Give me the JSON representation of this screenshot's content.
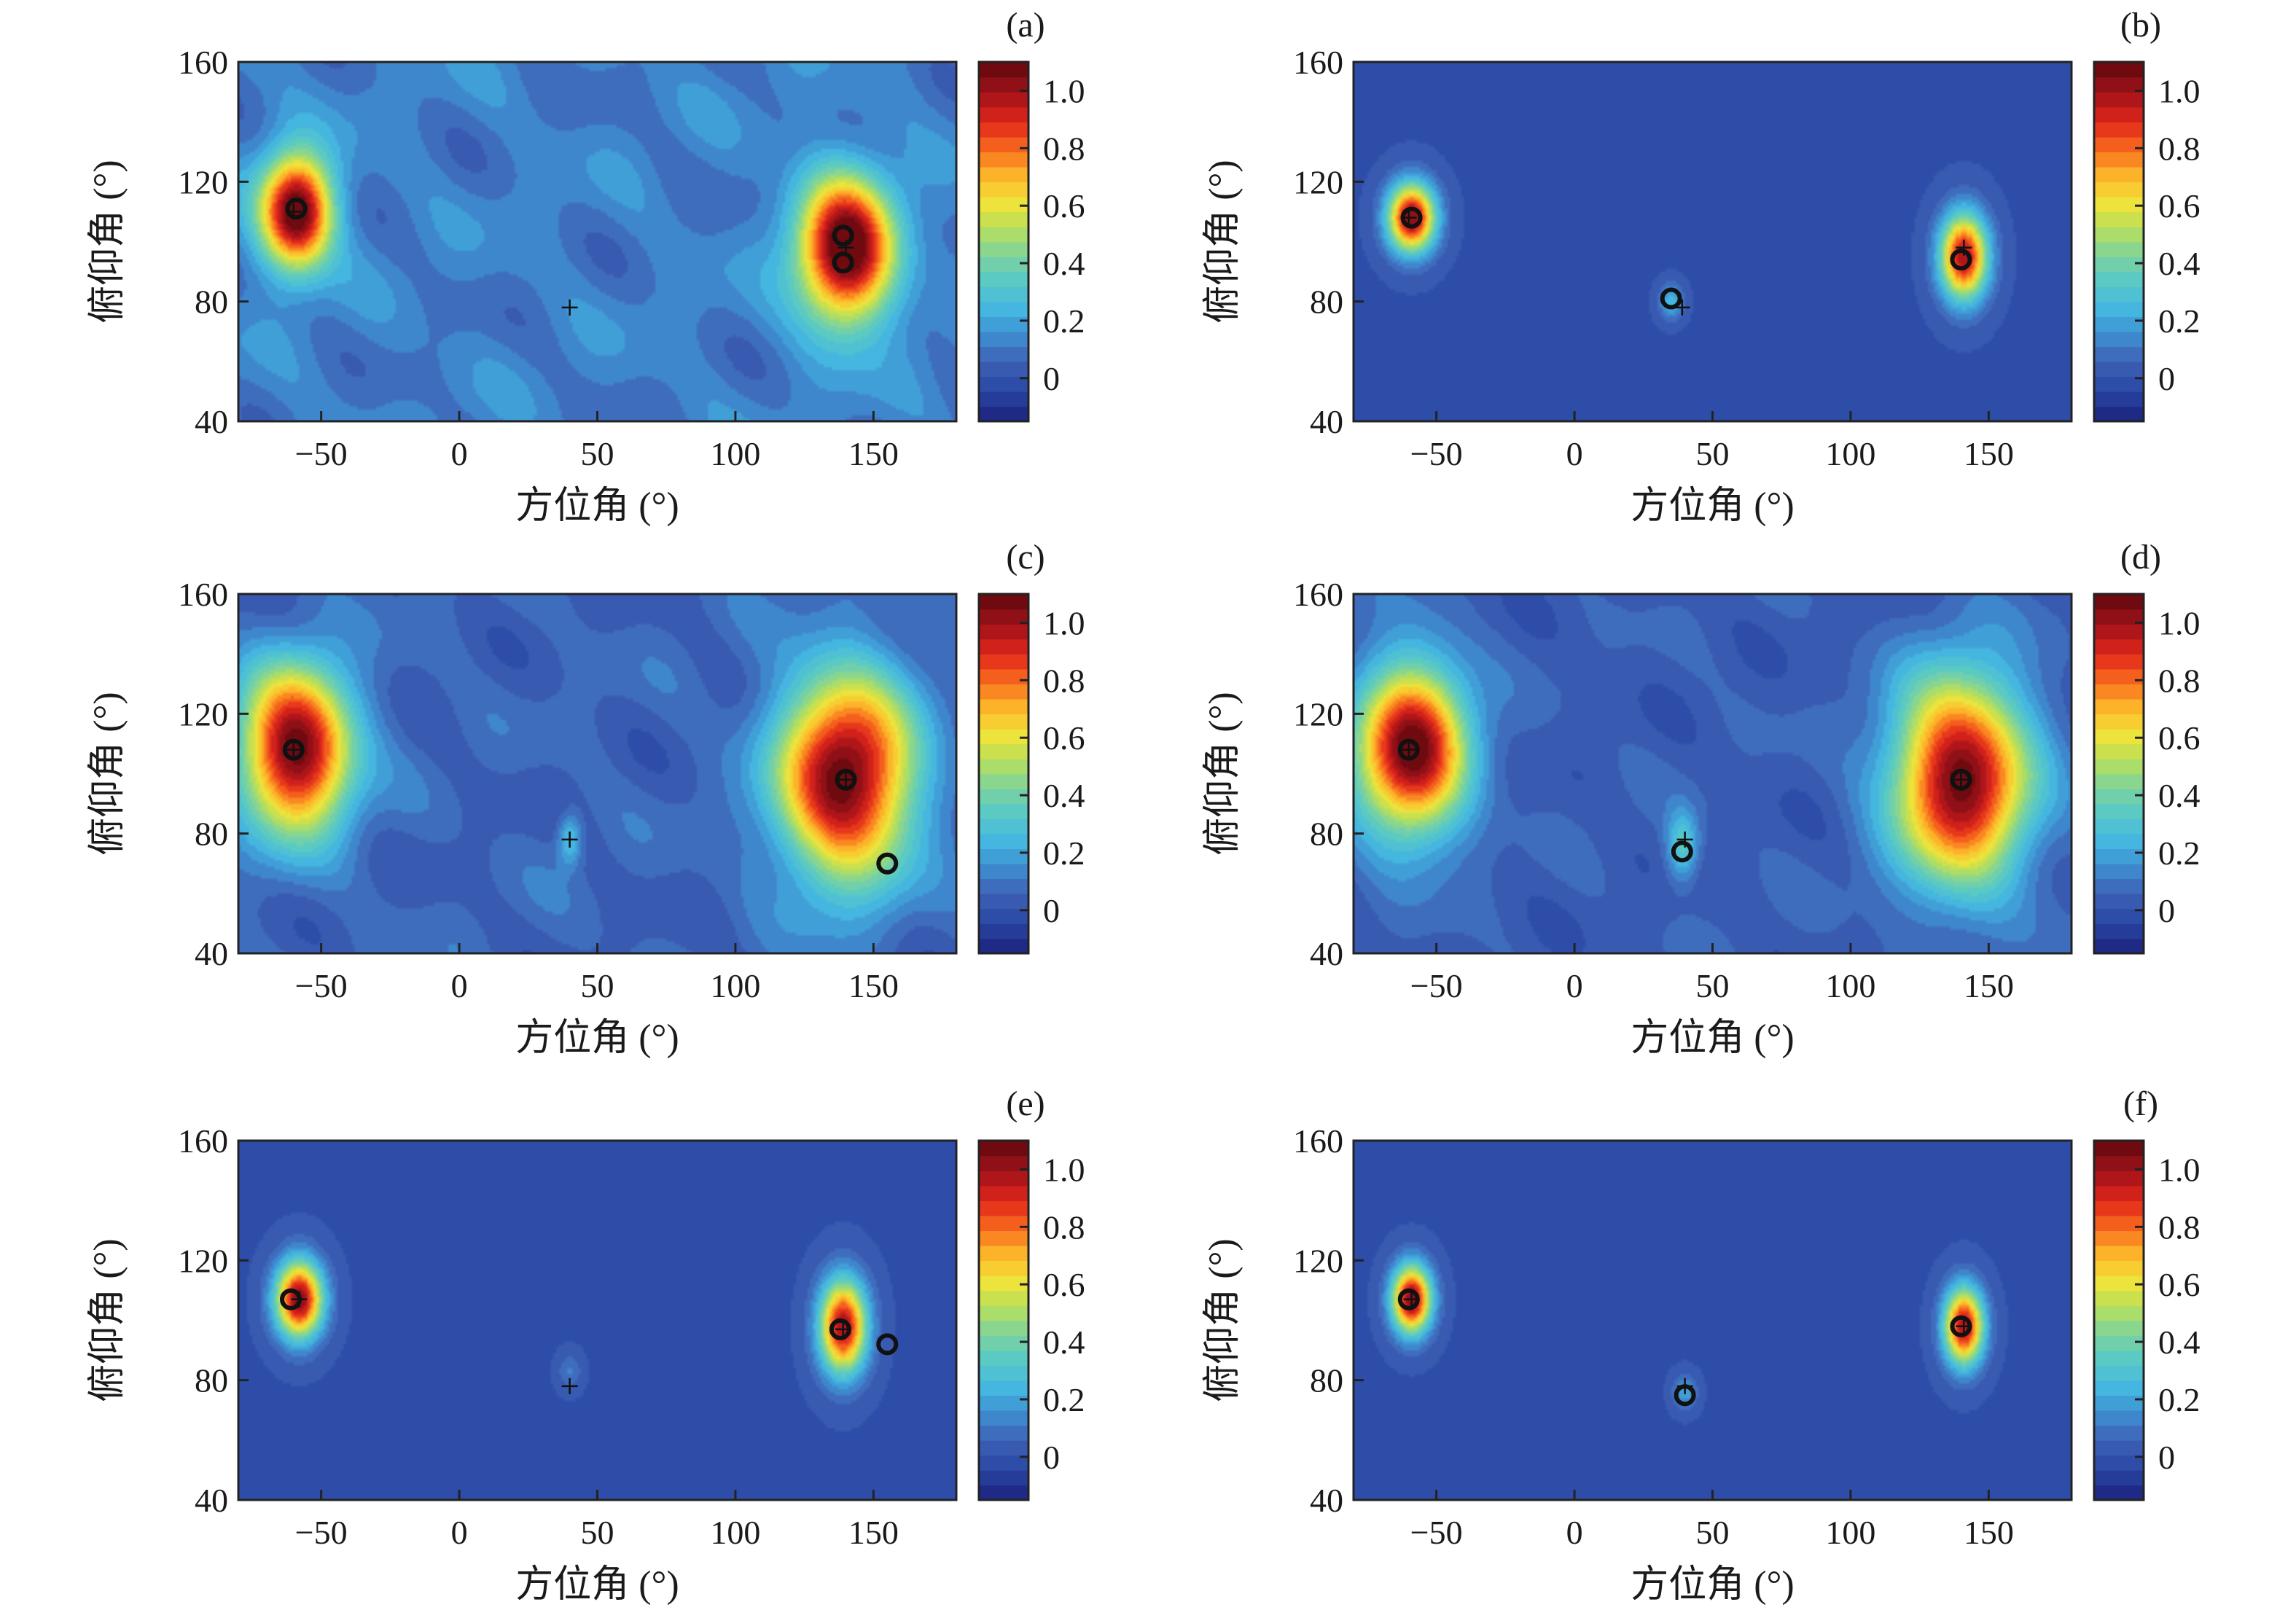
{
  "colors": {
    "background": "#3f61b6",
    "colormap": [
      "#1e2a86",
      "#2b4aa6",
      "#3f61b6",
      "#3f8fd2",
      "#45b8e0",
      "#58c9c6",
      "#7fd49d",
      "#b6df5a",
      "#f1e33a",
      "#fdb62a",
      "#f86b1d",
      "#e1261c",
      "#a8141a",
      "#6e0a10"
    ]
  },
  "chart_data": [
    {
      "type": "heatmap",
      "panel_label": "(a)",
      "xlabel": "方位角 (°)",
      "ylabel": "俯仰角 (°)",
      "xlim": [
        -80,
        180
      ],
      "ylim": [
        40,
        160
      ],
      "xticks": [
        -50,
        0,
        50,
        100,
        150
      ],
      "yticks": [
        40,
        80,
        120,
        160
      ],
      "colorbar": {
        "range": [
          -0.15,
          1.1
        ],
        "ticks": [
          0,
          0.2,
          0.4,
          0.6,
          0.8,
          1.0
        ]
      },
      "baseline": 0.12,
      "noise": 0.07,
      "peaks": [
        {
          "x": -59,
          "y": 110,
          "value": 1.05,
          "sx": 9,
          "sy": 13
        },
        {
          "x": 140,
          "y": 97,
          "value": 1.05,
          "sx": 12,
          "sy": 17
        }
      ],
      "true_sources": [
        {
          "x": -60,
          "y": 110
        },
        {
          "x": 140,
          "y": 98
        },
        {
          "x": 40,
          "y": 78
        }
      ],
      "estimates": [
        {
          "x": -59,
          "y": 111
        },
        {
          "x": 139,
          "y": 102
        },
        {
          "x": 139,
          "y": 93
        }
      ]
    },
    {
      "type": "heatmap",
      "panel_label": "(b)",
      "xlabel": "方位角 (°)",
      "ylabel": "俯仰角 (°)",
      "xlim": [
        -80,
        180
      ],
      "ylim": [
        40,
        160
      ],
      "xticks": [
        -50,
        0,
        50,
        100,
        150
      ],
      "yticks": [
        40,
        80,
        120,
        160
      ],
      "colorbar": {
        "range": [
          -0.15,
          1.1
        ],
        "ticks": [
          0,
          0.2,
          0.4,
          0.6,
          0.8,
          1.0
        ]
      },
      "baseline": 0.0,
      "noise": 0.0,
      "peaks": [
        {
          "x": -59,
          "y": 108,
          "value": 1.05,
          "sx": 6,
          "sy": 8
        },
        {
          "x": 141,
          "y": 95,
          "value": 1.0,
          "sx": 6,
          "sy": 10
        },
        {
          "x": 35,
          "y": 80,
          "value": 0.25,
          "sx": 3,
          "sy": 4
        }
      ],
      "true_sources": [
        {
          "x": -60,
          "y": 108
        },
        {
          "x": 141,
          "y": 98
        },
        {
          "x": 39,
          "y": 78
        }
      ],
      "estimates": [
        {
          "x": -59,
          "y": 108
        },
        {
          "x": 140,
          "y": 94
        },
        {
          "x": 35,
          "y": 81
        }
      ]
    },
    {
      "type": "heatmap",
      "panel_label": "(c)",
      "xlabel": "方位角 (°)",
      "ylabel": "俯仰角 (°)",
      "xlim": [
        -80,
        180
      ],
      "ylim": [
        40,
        160
      ],
      "xticks": [
        -50,
        0,
        50,
        100,
        150
      ],
      "yticks": [
        40,
        80,
        120,
        160
      ],
      "colorbar": {
        "range": [
          -0.15,
          1.1
        ],
        "ticks": [
          0,
          0.2,
          0.4,
          0.6,
          0.8,
          1.0
        ]
      },
      "baseline": 0.06,
      "noise": 0.06,
      "peaks": [
        {
          "x": -59,
          "y": 108,
          "value": 1.05,
          "sx": 14,
          "sy": 19
        },
        {
          "x": 140,
          "y": 99,
          "value": 1.05,
          "sx": 17,
          "sy": 24
        },
        {
          "x": 40,
          "y": 78,
          "value": 0.25,
          "sx": 3,
          "sy": 6
        }
      ],
      "true_sources": [
        {
          "x": -60,
          "y": 108
        },
        {
          "x": 140,
          "y": 98
        },
        {
          "x": 40,
          "y": 78
        }
      ],
      "estimates": [
        {
          "x": -60,
          "y": 108
        },
        {
          "x": 140,
          "y": 98
        },
        {
          "x": 155,
          "y": 70
        }
      ]
    },
    {
      "type": "heatmap",
      "panel_label": "(d)",
      "xlabel": "方位角 (°)",
      "ylabel": "俯仰角 (°)",
      "xlim": [
        -80,
        180
      ],
      "ylim": [
        40,
        160
      ],
      "xticks": [
        -50,
        0,
        50,
        100,
        150
      ],
      "yticks": [
        40,
        80,
        120,
        160
      ],
      "colorbar": {
        "range": [
          -0.15,
          1.1
        ],
        "ticks": [
          0,
          0.2,
          0.4,
          0.6,
          0.8,
          1.0
        ]
      },
      "baseline": 0.04,
      "noise": 0.05,
      "peaks": [
        {
          "x": -59,
          "y": 108,
          "value": 1.05,
          "sx": 14,
          "sy": 20
        },
        {
          "x": 140,
          "y": 98,
          "value": 1.05,
          "sx": 17,
          "sy": 24
        },
        {
          "x": 39,
          "y": 76,
          "value": 0.3,
          "sx": 4,
          "sy": 8
        }
      ],
      "true_sources": [
        {
          "x": -60,
          "y": 108
        },
        {
          "x": 140,
          "y": 98
        },
        {
          "x": 40,
          "y": 78
        }
      ],
      "estimates": [
        {
          "x": -60,
          "y": 108
        },
        {
          "x": 140,
          "y": 98
        },
        {
          "x": 39,
          "y": 74
        }
      ]
    },
    {
      "type": "heatmap",
      "panel_label": "(e)",
      "xlabel": "方位角 (°)",
      "ylabel": "俯仰角 (°)",
      "xlim": [
        -80,
        180
      ],
      "ylim": [
        40,
        160
      ],
      "xticks": [
        -50,
        0,
        50,
        100,
        150
      ],
      "yticks": [
        40,
        80,
        120,
        160
      ],
      "colorbar": {
        "range": [
          -0.15,
          1.1
        ],
        "ticks": [
          0,
          0.2,
          0.4,
          0.6,
          0.8,
          1.0
        ]
      },
      "baseline": 0.0,
      "noise": 0.0,
      "peaks": [
        {
          "x": -58,
          "y": 107,
          "value": 1.05,
          "sx": 6,
          "sy": 9
        },
        {
          "x": 139,
          "y": 98,
          "value": 1.0,
          "sx": 6,
          "sy": 11
        },
        {
          "x": 40,
          "y": 83,
          "value": 0.12,
          "sx": 3,
          "sy": 4
        }
      ],
      "true_sources": [
        {
          "x": -58,
          "y": 107
        },
        {
          "x": 139,
          "y": 97
        },
        {
          "x": 40,
          "y": 78
        }
      ],
      "estimates": [
        {
          "x": -61,
          "y": 107
        },
        {
          "x": 138,
          "y": 97
        },
        {
          "x": 155,
          "y": 92
        }
      ]
    },
    {
      "type": "heatmap",
      "panel_label": "(f)",
      "xlabel": "方位角 (°)",
      "ylabel": "俯仰角 (°)",
      "xlim": [
        -80,
        180
      ],
      "ylim": [
        40,
        160
      ],
      "xticks": [
        -50,
        0,
        50,
        100,
        150
      ],
      "yticks": [
        40,
        80,
        120,
        160
      ],
      "colorbar": {
        "range": [
          -0.15,
          1.1
        ],
        "ticks": [
          0,
          0.2,
          0.4,
          0.6,
          0.8,
          1.0
        ]
      },
      "baseline": 0.0,
      "noise": 0.0,
      "peaks": [
        {
          "x": -59,
          "y": 107,
          "value": 1.05,
          "sx": 5,
          "sy": 8
        },
        {
          "x": 141,
          "y": 98,
          "value": 1.0,
          "sx": 5,
          "sy": 9
        },
        {
          "x": 40,
          "y": 76,
          "value": 0.2,
          "sx": 3,
          "sy": 4
        }
      ],
      "true_sources": [
        {
          "x": -59,
          "y": 107
        },
        {
          "x": 141,
          "y": 98
        },
        {
          "x": 40,
          "y": 78
        }
      ],
      "estimates": [
        {
          "x": -60,
          "y": 107
        },
        {
          "x": 140,
          "y": 98
        },
        {
          "x": 40,
          "y": 75
        }
      ]
    }
  ]
}
